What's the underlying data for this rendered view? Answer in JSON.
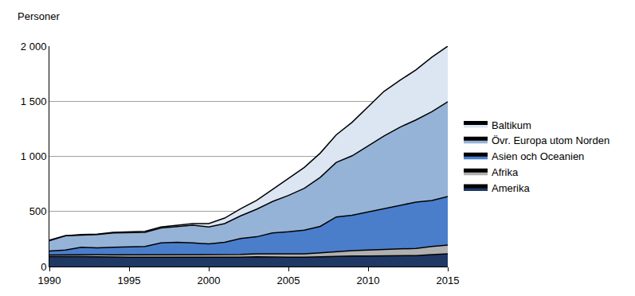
{
  "chart_data": {
    "type": "area",
    "stacked": true,
    "y_label": "Personer",
    "x": [
      1990,
      1991,
      1992,
      1993,
      1994,
      1995,
      1996,
      1997,
      1998,
      1999,
      2000,
      2001,
      2002,
      2003,
      2004,
      2005,
      2006,
      2007,
      2008,
      2009,
      2010,
      2011,
      2012,
      2013,
      2014,
      2015
    ],
    "series": [
      {
        "name": "Amerika",
        "color": "#1f3864",
        "values": [
          90,
          92,
          90,
          88,
          85,
          85,
          85,
          85,
          85,
          83,
          80,
          80,
          85,
          88,
          85,
          85,
          85,
          90,
          92,
          95,
          95,
          97,
          98,
          100,
          108,
          115
        ]
      },
      {
        "name": "Afrika",
        "color": "#b0b0b0",
        "values": [
          15,
          15,
          18,
          20,
          22,
          22,
          22,
          22,
          22,
          22,
          25,
          25,
          25,
          27,
          30,
          30,
          30,
          35,
          45,
          50,
          55,
          60,
          62,
          65,
          75,
          80
        ]
      },
      {
        "name": "Asien och Oceanien",
        "color": "#4a7ecb",
        "values": [
          35,
          43,
          67,
          62,
          68,
          71,
          75,
          108,
          113,
          110,
          100,
          115,
          145,
          155,
          190,
          200,
          215,
          240,
          313,
          320,
          345,
          368,
          395,
          420,
          417,
          440
        ]
      },
      {
        "name": "Övr. Europa utom Norden",
        "color": "#95b3d7",
        "values": [
          95,
          130,
          110,
          120,
          130,
          127,
          128,
          135,
          145,
          160,
          155,
          170,
          205,
          250,
          285,
          330,
          380,
          445,
          495,
          540,
          600,
          660,
          710,
          745,
          805,
          860
        ]
      },
      {
        "name": "Baltikum",
        "color": "#dce6f2",
        "values": [
          5,
          0,
          5,
          5,
          5,
          10,
          10,
          10,
          10,
          15,
          30,
          50,
          65,
          80,
          110,
          155,
          190,
          220,
          250,
          305,
          355,
          405,
          425,
          455,
          495,
          505
        ]
      }
    ],
    "xlim": [
      1990,
      2015
    ],
    "xticks": [
      1990,
      1995,
      2000,
      2005,
      2010,
      2015
    ],
    "ylim": [
      0,
      2000
    ],
    "yticks": [
      0,
      500,
      {
        "value": 1000,
        "label": "1 000"
      },
      {
        "value": 1500,
        "label": "1 500"
      },
      {
        "value": 2000,
        "label": "2 000"
      }
    ],
    "grid": true,
    "legend": "right"
  }
}
